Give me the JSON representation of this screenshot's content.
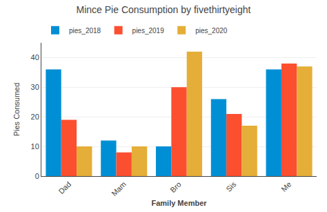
{
  "chart_data": {
    "type": "bar",
    "title": "Mince Pie Consumption by fivethirtyeight",
    "xlabel": "Family Member",
    "ylabel": "Pies Consumed",
    "categories": [
      "Dad",
      "Mam",
      "Bro",
      "Sis",
      "Me"
    ],
    "series": [
      {
        "name": "pies_2018",
        "color": "#008fd5",
        "values": [
          36,
          12,
          10,
          26,
          36
        ]
      },
      {
        "name": "pies_2019",
        "color": "#fc4f30",
        "values": [
          19,
          8,
          30,
          21,
          38
        ]
      },
      {
        "name": "pies_2020",
        "color": "#e5ae38",
        "values": [
          10,
          10,
          42,
          17,
          37
        ]
      }
    ],
    "ylim": [
      0,
      45
    ],
    "yticks": [
      0,
      10,
      20,
      30,
      40
    ],
    "grid": true,
    "legend": "upper left"
  }
}
